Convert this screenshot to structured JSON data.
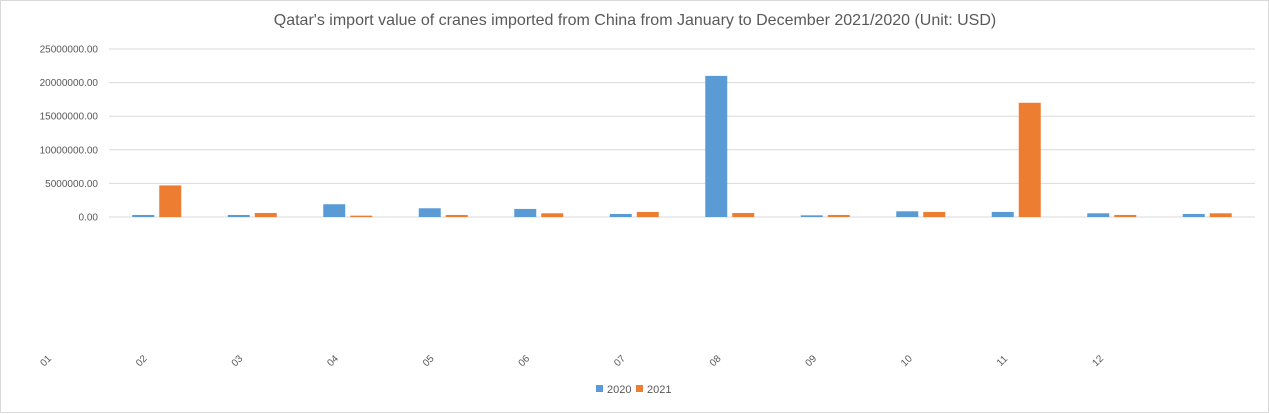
{
  "chart_data": {
    "type": "bar",
    "title": "Qatar's import value of cranes imported from China from January to December 2021/2020 (Unit: USD)",
    "xlabel": "",
    "ylabel": "",
    "categories": [
      "01",
      "02",
      "03",
      "04",
      "05",
      "06",
      "07",
      "08",
      "09",
      "10",
      "11",
      "12"
    ],
    "series": [
      {
        "name": "2020",
        "color": "#5b9bd5",
        "values": [
          300000,
          300000,
          1900000,
          1300000,
          1200000,
          450000,
          21000000,
          250000,
          850000,
          750000,
          550000,
          450000
        ]
      },
      {
        "name": "2021",
        "color": "#ed7d31",
        "values": [
          4700000,
          600000,
          200000,
          300000,
          550000,
          750000,
          600000,
          300000,
          750000,
          17000000,
          300000,
          550000
        ]
      }
    ],
    "ylim": [
      0,
      25000000
    ],
    "yticks": [
      "0.00",
      "5000000.00",
      "10000000.00",
      "15000000.00",
      "20000000.00",
      "25000000.00"
    ],
    "grid": true,
    "legend_position": "bottom"
  }
}
